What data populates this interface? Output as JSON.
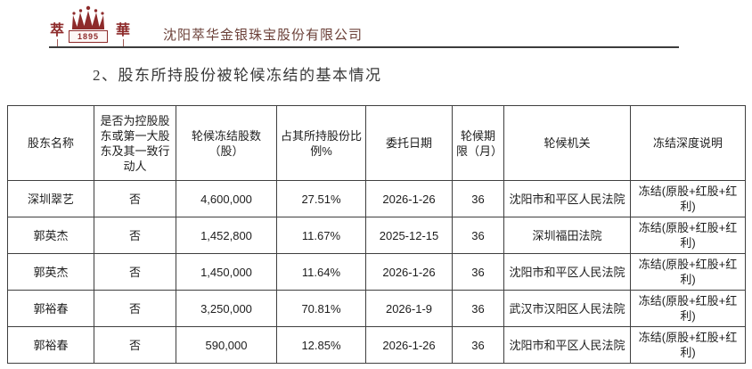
{
  "header": {
    "logo": {
      "left_char": "萃",
      "year": "1895",
      "right_char": "華",
      "brand_color": "#8e2b2b"
    },
    "company_name": "沈阳萃华金银珠宝股份有限公司"
  },
  "section": {
    "title": "2、股东所持股份被轮候冻结的基本情况"
  },
  "table": {
    "columns": [
      "股东名称",
      "是否为控股股东或第一大股东及其一致行动人",
      "轮候冻结股数（股）",
      "占其所持股份比例%",
      "委托日期",
      "轮候期限（月）",
      "轮候机关",
      "冻结深度说明"
    ],
    "rows": [
      [
        "深圳翠艺",
        "否",
        "4,600,000",
        "27.51%",
        "2026-1-26",
        "36",
        "沈阳市和平区人民法院",
        "冻结(原股+红股+红利)"
      ],
      [
        "郭英杰",
        "否",
        "1,452,800",
        "11.67%",
        "2025-12-15",
        "36",
        "深圳福田法院",
        "冻结(原股+红股+红利)"
      ],
      [
        "郭英杰",
        "否",
        "1,450,000",
        "11.64%",
        "2026-1-26",
        "36",
        "沈阳市和平区人民法院",
        "冻结(原股+红股+红利)"
      ],
      [
        "郭裕春",
        "否",
        "3,250,000",
        "70.81%",
        "2026-1-9",
        "36",
        "武汉市汉阳区人民法院",
        "冻结(原股+红股+红利)"
      ],
      [
        "郭裕春",
        "否",
        "590,000",
        "12.85%",
        "2026-1-26",
        "36",
        "沈阳市和平区人民法院",
        "冻结(原股+红股+红利)"
      ]
    ]
  }
}
